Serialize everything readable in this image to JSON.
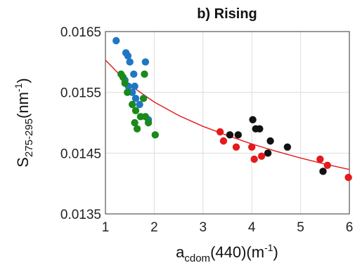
{
  "chart_data": {
    "type": "scatter",
    "title": "b) Rising",
    "xlabel": {
      "base": "a",
      "sub": "cdom",
      "rest": "(440)(m",
      "sup": "-1",
      "end": ")"
    },
    "ylabel": {
      "base": "S",
      "sub": "275-295",
      "rest": "(nm",
      "sup": "-1",
      "end": ")"
    },
    "xlim": [
      1,
      6
    ],
    "ylim": [
      0.0135,
      0.0165
    ],
    "xticks": [
      1,
      2,
      3,
      4,
      5,
      6
    ],
    "xtick_labels": [
      "1",
      "2",
      "3",
      "4",
      "5",
      "6"
    ],
    "yticks": [
      0.0135,
      0.0145,
      0.0155,
      0.0165
    ],
    "ytick_labels": [
      "0.0135",
      "0.0145",
      "0.0155",
      "0.0165"
    ],
    "grid": true,
    "series": [
      {
        "color": "#1f77c4",
        "points": [
          [
            1.22,
            0.01635
          ],
          [
            1.42,
            0.01615
          ],
          [
            1.46,
            0.0161
          ],
          [
            1.5,
            0.016
          ],
          [
            1.82,
            0.016
          ],
          [
            1.58,
            0.0158
          ],
          [
            1.4,
            0.0157
          ],
          [
            1.47,
            0.0156
          ],
          [
            1.6,
            0.0156
          ],
          [
            1.55,
            0.0155
          ],
          [
            1.62,
            0.0154
          ],
          [
            1.7,
            0.0153
          ],
          [
            1.88,
            0.01505
          ]
        ]
      },
      {
        "color": "#1a8a1a",
        "points": [
          [
            1.32,
            0.0158
          ],
          [
            1.36,
            0.01575
          ],
          [
            1.8,
            0.0158
          ],
          [
            1.4,
            0.01565
          ],
          [
            1.45,
            0.0155
          ],
          [
            1.78,
            0.0154
          ],
          [
            1.55,
            0.0153
          ],
          [
            1.62,
            0.0152
          ],
          [
            1.72,
            0.0151
          ],
          [
            1.6,
            0.015
          ],
          [
            1.82,
            0.0151
          ],
          [
            1.88,
            0.015
          ],
          [
            1.65,
            0.0149
          ],
          [
            2.02,
            0.0148
          ]
        ]
      },
      {
        "color": "#111111",
        "points": [
          [
            3.55,
            0.0148
          ],
          [
            3.72,
            0.0148
          ],
          [
            4.02,
            0.01505
          ],
          [
            4.08,
            0.0149
          ],
          [
            4.16,
            0.0149
          ],
          [
            4.38,
            0.0147
          ],
          [
            4.33,
            0.0145
          ],
          [
            4.73,
            0.0146
          ],
          [
            5.46,
            0.0142
          ]
        ]
      },
      {
        "color": "#e41a1c",
        "points": [
          [
            3.35,
            0.01485
          ],
          [
            3.42,
            0.0147
          ],
          [
            3.68,
            0.0146
          ],
          [
            4.0,
            0.0146
          ],
          [
            4.05,
            0.0144
          ],
          [
            4.2,
            0.01445
          ],
          [
            5.4,
            0.0144
          ],
          [
            5.55,
            0.0143
          ],
          [
            5.98,
            0.0141
          ]
        ]
      }
    ],
    "fit_curve": {
      "color": "#e41a1c",
      "points": [
        [
          1.0,
          0.01603
        ],
        [
          1.5,
          0.01562
        ],
        [
          2.0,
          0.01534
        ],
        [
          2.5,
          0.01512
        ],
        [
          3.0,
          0.01494
        ],
        [
          3.5,
          0.01479
        ],
        [
          4.0,
          0.01465
        ],
        [
          4.5,
          0.01453
        ],
        [
          5.0,
          0.01442
        ],
        [
          5.5,
          0.01432
        ],
        [
          6.0,
          0.01423
        ]
      ]
    }
  }
}
